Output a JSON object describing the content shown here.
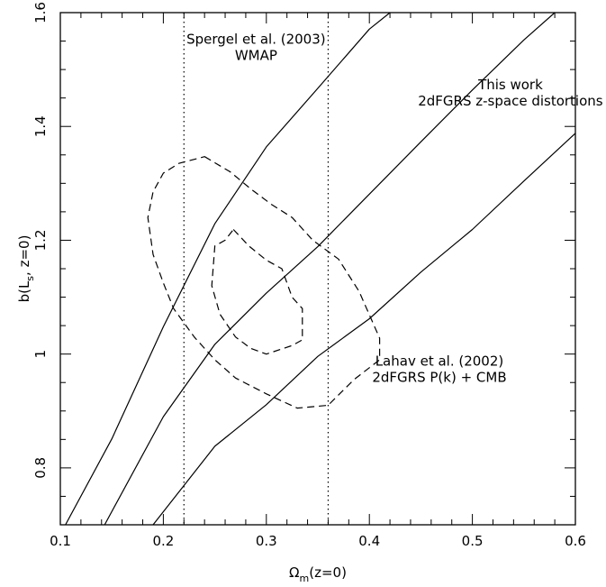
{
  "chart_data": {
    "type": "line",
    "xlim": [
      0.1,
      0.6
    ],
    "ylim": [
      0.7,
      1.6
    ],
    "x_ticks": [
      0.1,
      0.2,
      0.3,
      0.4,
      0.5,
      0.6
    ],
    "x_tick_labels": [
      "0.1",
      "0.2",
      "0.3",
      "0.4",
      "0.5",
      "0.6"
    ],
    "y_ticks": [
      0.8,
      1.0,
      1.2,
      1.4,
      1.6
    ],
    "y_tick_labels": [
      "0.8",
      "1",
      "1.2",
      "1.4",
      "1.6"
    ],
    "xlabel": {
      "main": "Ω",
      "sub": "m",
      "tail": "(z=0)"
    },
    "ylabel": {
      "pre": "b(L",
      "sub": "s",
      "tail": ", z=0)"
    },
    "grid": false,
    "series": [
      {
        "style": "solid",
        "points": [
          [
            0.105,
            0.7
          ],
          [
            0.15,
            0.851
          ],
          [
            0.2,
            1.048
          ],
          [
            0.25,
            1.229
          ],
          [
            0.3,
            1.364
          ],
          [
            0.35,
            1.467
          ],
          [
            0.4,
            1.571
          ],
          [
            0.42,
            1.6
          ]
        ]
      },
      {
        "style": "solid",
        "points": [
          [
            0.143,
            0.7
          ],
          [
            0.2,
            0.89
          ],
          [
            0.25,
            1.017
          ],
          [
            0.3,
            1.107
          ],
          [
            0.35,
            1.189
          ],
          [
            0.4,
            1.281
          ],
          [
            0.45,
            1.373
          ],
          [
            0.5,
            1.464
          ],
          [
            0.55,
            1.552
          ],
          [
            0.58,
            1.6
          ]
        ]
      },
      {
        "style": "solid",
        "points": [
          [
            0.19,
            0.7
          ],
          [
            0.25,
            0.838
          ],
          [
            0.3,
            0.911
          ],
          [
            0.35,
            0.996
          ],
          [
            0.4,
            1.062
          ],
          [
            0.45,
            1.144
          ],
          [
            0.5,
            1.219
          ],
          [
            0.55,
            1.304
          ],
          [
            0.6,
            1.388
          ]
        ]
      },
      {
        "style": "dashed",
        "closed": true,
        "points": [
          [
            0.24,
            1.347
          ],
          [
            0.265,
            1.32
          ],
          [
            0.285,
            1.29
          ],
          [
            0.305,
            1.263
          ],
          [
            0.325,
            1.24
          ],
          [
            0.345,
            1.2
          ],
          [
            0.37,
            1.167
          ],
          [
            0.39,
            1.11
          ],
          [
            0.41,
            1.028
          ],
          [
            0.41,
            0.99
          ],
          [
            0.385,
            0.955
          ],
          [
            0.36,
            0.91
          ],
          [
            0.33,
            0.905
          ],
          [
            0.3,
            0.93
          ],
          [
            0.27,
            0.958
          ],
          [
            0.25,
            0.99
          ],
          [
            0.23,
            1.03
          ],
          [
            0.21,
            1.08
          ],
          [
            0.2,
            1.125
          ],
          [
            0.19,
            1.175
          ],
          [
            0.185,
            1.24
          ],
          [
            0.19,
            1.285
          ],
          [
            0.2,
            1.318
          ],
          [
            0.215,
            1.335
          ]
        ]
      },
      {
        "style": "dashed",
        "closed": true,
        "points": [
          [
            0.268,
            1.219
          ],
          [
            0.283,
            1.19
          ],
          [
            0.3,
            1.165
          ],
          [
            0.315,
            1.15
          ],
          [
            0.325,
            1.1
          ],
          [
            0.335,
            1.08
          ],
          [
            0.335,
            1.025
          ],
          [
            0.325,
            1.015
          ],
          [
            0.3,
            1.0
          ],
          [
            0.285,
            1.01
          ],
          [
            0.27,
            1.03
          ],
          [
            0.255,
            1.07
          ],
          [
            0.247,
            1.12
          ],
          [
            0.25,
            1.19
          ],
          [
            0.26,
            1.2
          ]
        ]
      }
    ],
    "vlines": [
      {
        "x": 0.22,
        "style": "dotted"
      },
      {
        "x": 0.36,
        "style": "dotted"
      }
    ],
    "annotations": [
      {
        "lines": [
          "Spergel et al. (2003)",
          "WMAP"
        ],
        "x": 0.29,
        "y": 1.545,
        "anchor": "middle"
      },
      {
        "lines": [
          "This work",
          "2dFGRS z-space distortions"
        ],
        "x": 0.537,
        "y": 1.465,
        "anchor": "middle"
      },
      {
        "lines": [
          "Lahav et al. (2002)",
          "2dFGRS P(k) + CMB"
        ],
        "x": 0.468,
        "y": 0.98,
        "anchor": "middle"
      }
    ]
  }
}
